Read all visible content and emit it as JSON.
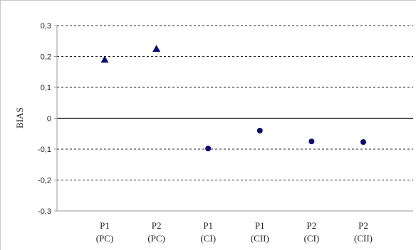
{
  "chart_data": {
    "type": "scatter",
    "title": "",
    "xlabel": "",
    "ylabel": "BIAS",
    "ylim": [
      -0.3,
      0.3
    ],
    "yticks": [
      "0,3",
      "0,2",
      "0,1",
      "0",
      "-0,1",
      "-0,2",
      "-0,3"
    ],
    "ytick_values": [
      0.3,
      0.2,
      0.1,
      0,
      -0.1,
      -0.2,
      -0.3
    ],
    "categories": [
      {
        "line1": "P1",
        "line2": "(PC)"
      },
      {
        "line1": "P2",
        "line2": "(PC)"
      },
      {
        "line1": "P1",
        "line2": "(CI)"
      },
      {
        "line1": "P1",
        "line2": "(CII)"
      },
      {
        "line1": "P2",
        "line2": "(CI)"
      },
      {
        "line1": "P2",
        "line2": "(CII)"
      }
    ],
    "points": [
      {
        "category_index": 0,
        "value": 0.19,
        "marker": "triangle"
      },
      {
        "category_index": 1,
        "value": 0.225,
        "marker": "triangle"
      },
      {
        "category_index": 2,
        "value": -0.098,
        "marker": "circle"
      },
      {
        "category_index": 3,
        "value": -0.04,
        "marker": "circle"
      },
      {
        "category_index": 4,
        "value": -0.075,
        "marker": "circle"
      },
      {
        "category_index": 5,
        "value": -0.077,
        "marker": "circle"
      }
    ],
    "grid": "horizontal dashed",
    "legend": "none",
    "marker_color": "#0a0a78"
  }
}
